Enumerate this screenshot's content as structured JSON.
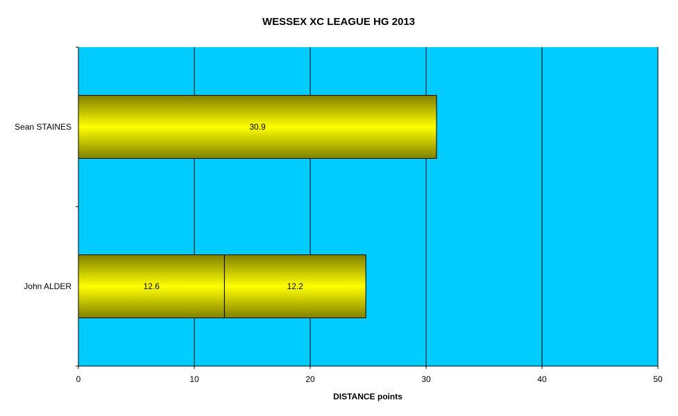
{
  "chart_data": {
    "type": "bar",
    "orientation": "horizontal",
    "stacked": true,
    "title": "WESSEX XC LEAGUE HG 2013",
    "xlabel": "DISTANCE points",
    "ylabel": "",
    "xlim": [
      0,
      50
    ],
    "xticks": [
      "0",
      "10",
      "20",
      "30",
      "40",
      "50"
    ],
    "grid": "vertical",
    "legend": "none",
    "colors": {
      "plot_bg": "#00CCFF",
      "bar_light": "#FFFF00",
      "bar_dark": "#808000",
      "grid": "#000000"
    },
    "categories": [
      "Sean STAINES",
      "John ALDER"
    ],
    "segments": [
      {
        "category": "Sean STAINES",
        "values": [
          30.9
        ],
        "labels": [
          "30.9"
        ]
      },
      {
        "category": "John ALDER",
        "values": [
          12.6,
          12.2
        ],
        "labels": [
          "12.6",
          "12.2"
        ]
      }
    ]
  }
}
